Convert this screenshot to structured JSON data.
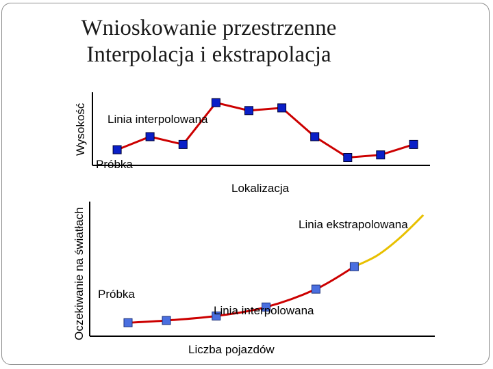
{
  "title": {
    "line1": "Wnioskowanie przestrzenne",
    "line2": "Interpolacja i ekstrapolacja"
  },
  "colors": {
    "line": "#cc0000",
    "extrapolation": "#e8c000",
    "marker_top": "#0a1fc8",
    "marker_bottom": "#4a6fe0",
    "axis": "#000000"
  },
  "chart_data": [
    {
      "type": "line",
      "title": "",
      "ylabel": "Wysokość",
      "xlabel": "Lokalizacja",
      "series": [
        {
          "name": "Linia interpolowana",
          "x": [
            1,
            2,
            3,
            4,
            5,
            6,
            7,
            8,
            9,
            10
          ],
          "values": [
            0.2,
            0.7,
            0.4,
            2.0,
            1.7,
            1.8,
            0.7,
            -0.1,
            0.0,
            0.4
          ]
        }
      ],
      "xlim": [
        0.5,
        10.5
      ],
      "ylim": [
        -0.4,
        2.4
      ],
      "annotations": {
        "sample": "Próbka",
        "line": "Linia interpolowana"
      }
    },
    {
      "type": "line",
      "title": "",
      "ylabel": "Oczekiwanie na światłach",
      "xlabel": "Liczba pojazdów",
      "series": [
        {
          "name": "Linia interpolowana",
          "x": [
            1,
            2,
            3.3,
            4.6,
            5.9,
            6.9
          ],
          "values": [
            0.1,
            0.2,
            0.4,
            0.8,
            1.6,
            2.6
          ]
        },
        {
          "name": "Linia ekstrapolowana",
          "x": [
            6.9,
            7.5,
            8.1,
            8.7
          ],
          "values": [
            2.6,
            3.1,
            3.9,
            4.9
          ]
        }
      ],
      "xlim": [
        0,
        9
      ],
      "ylim": [
        -0.5,
        5.5
      ],
      "annotations": {
        "sample": "Próbka",
        "line": "Linia interpolowana",
        "extrapolation": "Linia ekstrapolowana"
      }
    }
  ]
}
